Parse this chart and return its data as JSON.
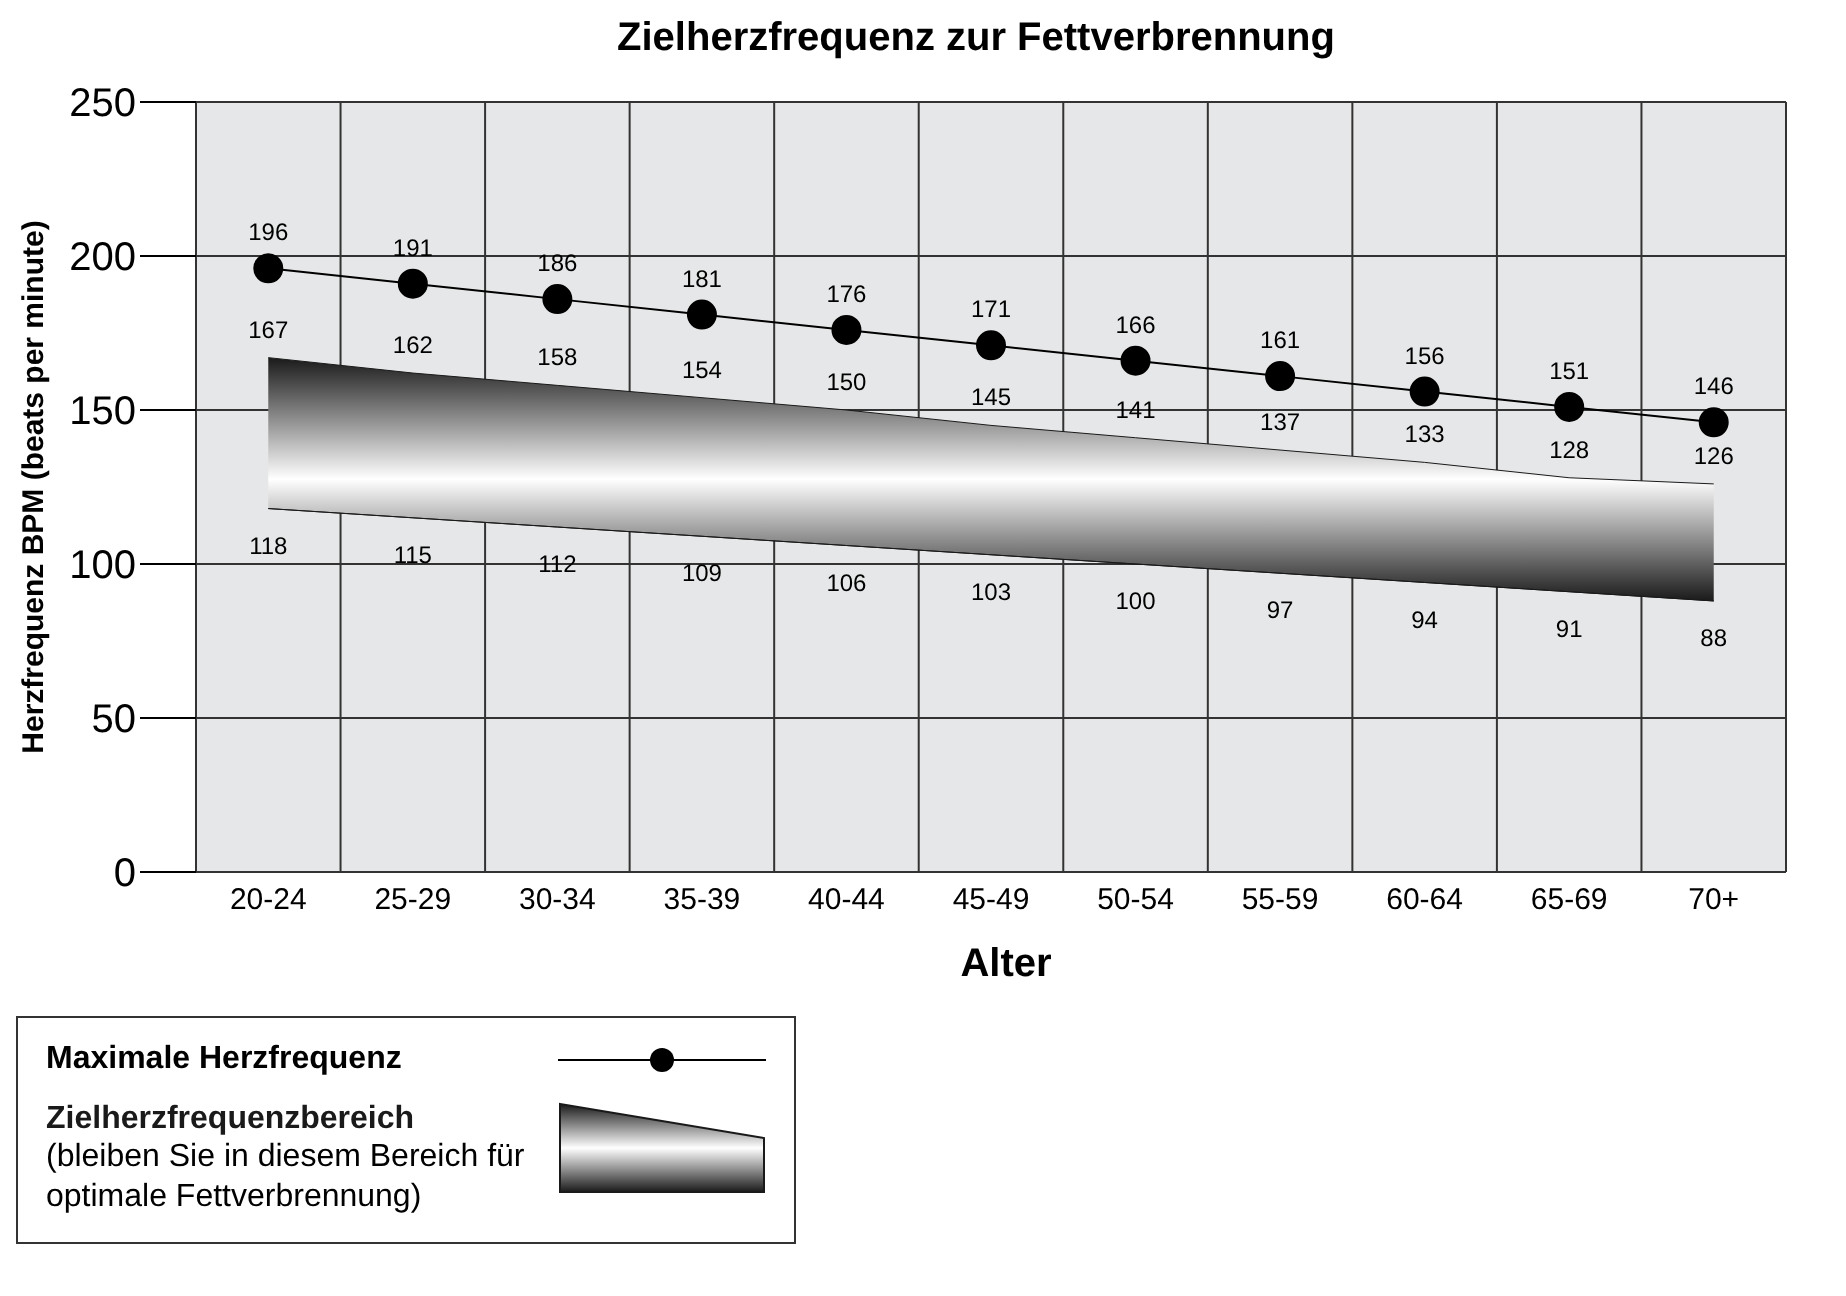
{
  "chart_data": {
    "type": "line",
    "title": "Zielherzfrequenz zur Fettverbrennung",
    "xlabel": "Alter",
    "ylabel": "Herzfrequenz BPM (beats per minute)",
    "categories": [
      "20-24",
      "25-29",
      "30-34",
      "35-39",
      "40-44",
      "45-49",
      "50-54",
      "55-59",
      "60-64",
      "65-69",
      "70+"
    ],
    "series": [
      {
        "name": "Maximale Herzfrequenz",
        "color": "#000000",
        "values": [
          196,
          191,
          186,
          181,
          176,
          171,
          166,
          161,
          156,
          151,
          146
        ]
      },
      {
        "color": "#1a1a1a",
        "marker": "none",
        "values": [
          118,
          115,
          112,
          109,
          106,
          103,
          100,
          97,
          94,
          91,
          88
        ]
      },
      {
        "name": "Zielherzfrequenzbereich",
        "type": "area",
        "color": "#1a1a1a",
        "marker": "none",
        "values": [
          167,
          162,
          158,
          154,
          150,
          145,
          141,
          137,
          133,
          128,
          126
        ]
      }
    ],
    "annotations": [
      "(bleiben Sie in diesem Bereich für optimale Fettverbrennung)"
    ],
    "ylim": [
      0,
      250
    ],
    "yticks": [
      0,
      50,
      100,
      150,
      200,
      250
    ],
    "grid": true,
    "legend": "bottom left",
    "marker": "circle",
    "line_style": "solid",
    "data_labels": true
  }
}
